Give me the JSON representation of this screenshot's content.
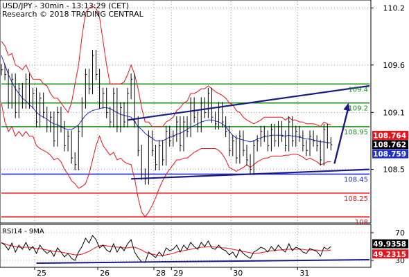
{
  "header": {
    "line1": "USD/JPY - 30min - 13:13:29 (CET)",
    "line2": "Research © 2018 TRADING CENTRAL"
  },
  "chart_data": [
    {
      "type": "line",
      "title": "USD/JPY - 30min - 13:13:29 (CET)",
      "subtitle": "Research © 2018 TRADING CENTRAL",
      "y_ticks": [
        "110.2",
        "109.6",
        "109.1",
        "108.5"
      ],
      "ylim": [
        107.95,
        110.27
      ],
      "x_ticks": [
        "25",
        "26",
        "28",
        "29",
        "30",
        "31"
      ],
      "x_range": [
        0,
        105
      ],
      "x_tick_pos": [
        9.5,
        27.5,
        43.5,
        48.5,
        65.5,
        84.5
      ],
      "price": {
        "current": "108.762",
        "current_value": 108.762,
        "series": [
          109.55,
          109.5,
          109.2,
          109.45,
          109.1,
          109.35,
          109.2,
          109.45,
          109.2,
          109.3,
          109.0,
          109.25,
          109.1,
          108.95,
          109.05,
          108.8,
          109.1,
          108.95,
          108.75,
          108.85,
          108.62,
          108.55,
          108.9,
          109.2,
          109.5,
          109.35,
          109.7,
          109.5,
          109.2,
          109.3,
          109.1,
          109.0,
          109.3,
          108.95,
          109.15,
          109.0,
          109.3,
          109.45,
          109.0,
          108.7,
          108.45,
          108.4,
          108.85,
          108.7,
          108.55,
          108.75,
          108.6,
          108.9,
          108.8,
          108.85,
          109.0,
          108.75,
          109.0,
          108.9,
          109.2,
          109.05,
          108.95,
          109.2,
          109.1,
          109.3,
          109.05,
          108.98,
          109.15,
          109.0,
          108.9,
          108.7,
          108.8,
          108.62,
          108.85,
          108.7,
          108.6,
          108.5,
          108.75,
          108.8,
          108.9,
          108.85,
          108.75,
          108.92,
          108.8,
          108.95,
          108.85,
          108.75,
          109.0,
          108.8,
          108.9,
          108.85,
          108.75,
          108.7,
          108.85,
          108.8,
          108.75,
          108.6,
          108.92,
          108.78,
          108.76
        ]
      },
      "moving_average": [
        109.7,
        109.6,
        109.5,
        109.42,
        109.35,
        109.3,
        109.25,
        109.22,
        109.18,
        109.15,
        109.1,
        109.07,
        109.05,
        109.03,
        109.0,
        108.98,
        108.97,
        108.95,
        108.93,
        108.92,
        108.92,
        108.94,
        108.97,
        109.02,
        109.07,
        109.1,
        109.12,
        109.13,
        109.14,
        109.15,
        109.15,
        109.14,
        109.12,
        109.1,
        109.08,
        109.07,
        109.06,
        109.05,
        109.0,
        108.95,
        108.92,
        108.88,
        108.85,
        108.83,
        108.8,
        108.8,
        108.8,
        108.82,
        108.84,
        108.85,
        108.87,
        108.88,
        108.9,
        108.92,
        108.95,
        108.96,
        108.98,
        109.0,
        109.01,
        109.02,
        109.02,
        109.01,
        109.0,
        108.98,
        108.95,
        108.9,
        108.86,
        108.83,
        108.82,
        108.81,
        108.8,
        108.79,
        108.8,
        108.82,
        108.83,
        108.85,
        108.85,
        108.86,
        108.86,
        108.86,
        108.86,
        108.85,
        108.86,
        108.85,
        108.85,
        108.84,
        108.83,
        108.82,
        108.82,
        108.81,
        108.8,
        108.79,
        108.79,
        108.78,
        108.78
      ],
      "bollinger_upper": [
        109.85,
        109.8,
        109.7,
        109.72,
        109.6,
        109.58,
        109.55,
        109.6,
        109.52,
        109.45,
        109.45,
        109.45,
        109.4,
        109.38,
        109.3,
        109.25,
        109.25,
        109.2,
        109.15,
        109.1,
        109.2,
        109.4,
        109.6,
        109.9,
        110.15,
        110.2,
        110.22,
        110.2,
        110.1,
        109.85,
        109.6,
        109.4,
        109.4,
        109.4,
        109.4,
        109.42,
        109.5,
        109.6,
        109.5,
        109.35,
        109.15,
        109.0,
        109.0,
        108.95,
        108.95,
        108.95,
        108.95,
        109.0,
        109.02,
        109.05,
        109.12,
        109.15,
        109.2,
        109.22,
        109.3,
        109.3,
        109.32,
        109.35,
        109.35,
        109.38,
        109.35,
        109.32,
        109.3,
        109.28,
        109.25,
        109.2,
        109.18,
        109.12,
        109.1,
        109.05,
        109.02,
        109.0,
        108.98,
        109.0,
        109.02,
        109.05,
        109.05,
        109.05,
        109.05,
        109.05,
        109.05,
        109.02,
        109.05,
        109.02,
        109.02,
        109.0,
        109.0,
        108.98,
        108.98,
        108.98,
        108.97,
        108.95,
        109.0,
        108.98,
        108.97
      ],
      "bollinger_lower": [
        109.2,
        109.0,
        108.9,
        108.95,
        108.85,
        108.9,
        108.85,
        108.9,
        108.85,
        108.85,
        108.75,
        108.72,
        108.7,
        108.68,
        108.65,
        108.6,
        108.62,
        108.58,
        108.5,
        108.45,
        108.38,
        108.35,
        108.3,
        108.32,
        108.35,
        108.45,
        108.6,
        108.75,
        108.85,
        108.75,
        108.7,
        108.65,
        108.68,
        108.6,
        108.62,
        108.58,
        108.56,
        108.55,
        108.4,
        108.2,
        108.05,
        108.0,
        108.05,
        108.12,
        108.2,
        108.3,
        108.38,
        108.45,
        108.5,
        108.55,
        108.6,
        108.6,
        108.62,
        108.62,
        108.65,
        108.68,
        108.7,
        108.72,
        108.72,
        108.72,
        108.72,
        108.72,
        108.7,
        108.66,
        108.6,
        108.52,
        108.5,
        108.48,
        108.5,
        108.52,
        108.55,
        108.52,
        108.55,
        108.58,
        108.6,
        108.62,
        108.62,
        108.64,
        108.64,
        108.64,
        108.64,
        108.65,
        108.65,
        108.66,
        108.66,
        108.65,
        108.63,
        108.6,
        108.62,
        108.6,
        108.58,
        108.55,
        108.56,
        108.58,
        108.58
      ],
      "levels": [
        {
          "label": "109.4",
          "value": 109.4,
          "color": "#1a8c1a"
        },
        {
          "label": "109.2",
          "value": 109.2,
          "color": "#1a8c1a"
        },
        {
          "label": "108.95",
          "value": 108.95,
          "color": "#1a8c1a"
        },
        {
          "label": "108.45",
          "value": 108.45,
          "color": "#1f2fc8"
        },
        {
          "label": "108.25",
          "value": 108.25,
          "color": "#e8121a"
        },
        {
          "label": "108",
          "value": 108.0,
          "color": "#e8121a"
        }
      ],
      "channel": {
        "upper": [
          [
            36,
            109.02
          ],
          [
            105,
            109.38
          ]
        ],
        "lower": [
          [
            37,
            108.4
          ],
          [
            105,
            108.5
          ]
        ]
      },
      "forecast_arrow": [
        [
          95,
          108.56
        ],
        [
          99,
          109.2
        ]
      ],
      "price_tags": [
        {
          "text": "108.764",
          "value": 108.764,
          "bg": "#e8121a",
          "fg": "#ffffff"
        },
        {
          "text": "108.762",
          "value": 108.762,
          "bg": "#000000",
          "fg": "#ffffff"
        },
        {
          "text": "108.759",
          "value": 108.759,
          "bg": "#1f2fc8",
          "fg": "#ffffff"
        }
      ],
      "colors": {
        "price": "#000000",
        "ma": "#1f2fc8",
        "bands": "#e8121a",
        "channel": "#1a1a80",
        "arrow": "#1a1a80"
      }
    },
    {
      "type": "line",
      "title": "RSI14 - 9MA",
      "ylim": [
        22,
        80
      ],
      "y_ticks": [
        "70",
        "30"
      ],
      "rsi": [
        56,
        52,
        45,
        55,
        42,
        52,
        46,
        56,
        45,
        50,
        40,
        52,
        45,
        40,
        44,
        36,
        48,
        42,
        35,
        40,
        33,
        30,
        42,
        50,
        62,
        55,
        66,
        60,
        48,
        52,
        45,
        42,
        54,
        42,
        50,
        44,
        54,
        60,
        42,
        34,
        28,
        27,
        42,
        38,
        34,
        42,
        36,
        48,
        44,
        46,
        52,
        42,
        52,
        46,
        56,
        50,
        46,
        56,
        50,
        58,
        48,
        46,
        52,
        46,
        44,
        38,
        42,
        34,
        46,
        40,
        36,
        33,
        42,
        45,
        49,
        47,
        42,
        50,
        44,
        52,
        46,
        42,
        54,
        44,
        49,
        47,
        42,
        40,
        47,
        45,
        43,
        36,
        49,
        46,
        50
      ],
      "rsi_ma": [
        55,
        54,
        52,
        51,
        50,
        49,
        49,
        49,
        49,
        48,
        47,
        47,
        46,
        45,
        44,
        43,
        43,
        42,
        41,
        40,
        39,
        38,
        38,
        39,
        41,
        43,
        46,
        49,
        51,
        52,
        51,
        50,
        50,
        49,
        49,
        48,
        48,
        49,
        49,
        47,
        45,
        42,
        40,
        39,
        38,
        37,
        37,
        38,
        39,
        40,
        42,
        43,
        44,
        45,
        46,
        47,
        48,
        49,
        49,
        50,
        50,
        49,
        49,
        48,
        48,
        47,
        46,
        45,
        44,
        43,
        42,
        41,
        40,
        40,
        41,
        42,
        43,
        44,
        44,
        45,
        45,
        46,
        46,
        46,
        46,
        46,
        46,
        45,
        45,
        45,
        45,
        44,
        44,
        44,
        45
      ],
      "trendline": [
        [
          10,
          26
        ],
        [
          105,
          31
        ]
      ],
      "tags": [
        {
          "text": "49.9358",
          "value": 49.9358,
          "bg": "#000000",
          "fg": "#ffffff"
        },
        {
          "text": "49.2315",
          "value": 49.2315,
          "bg": "#e8121a",
          "fg": "#ffffff"
        }
      ]
    }
  ]
}
